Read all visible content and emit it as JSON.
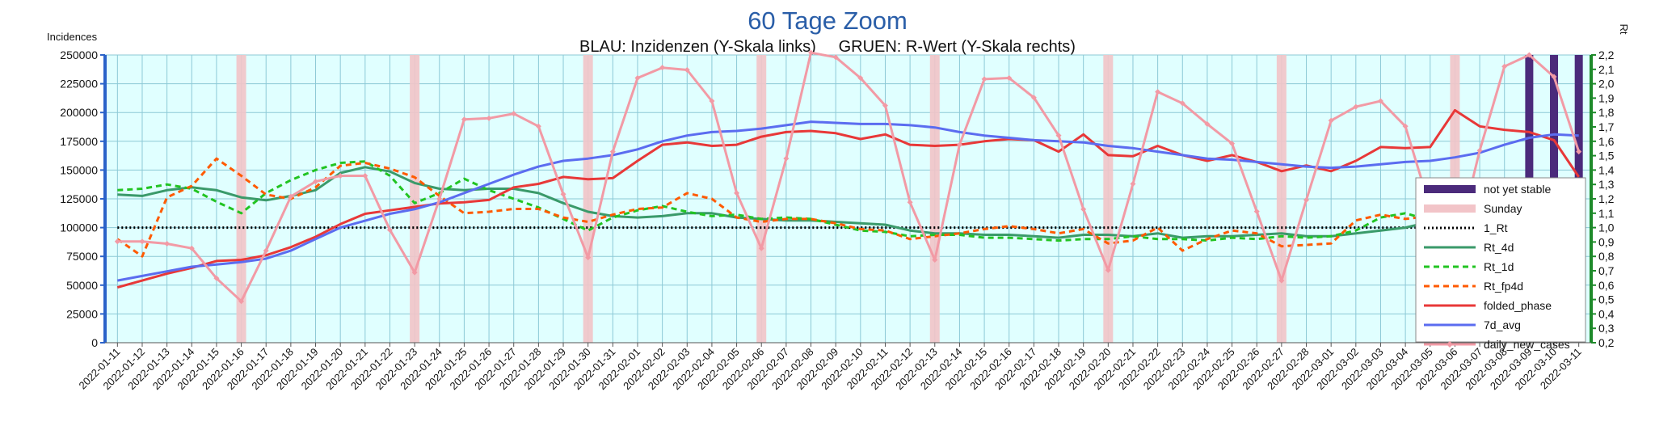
{
  "chart_data": {
    "type": "line",
    "title": "60 Tage Zoom",
    "subtitle": "BLAU: Inzidenzen (Y-Skala links)     GRUEN: R-Wert (Y-Skala rechts)",
    "ylabel": "Incidences",
    "y2label": "Rt",
    "ylim": [
      0,
      250000
    ],
    "y2lim": [
      0.2,
      2.2
    ],
    "yticks": [
      "0",
      "25000",
      "50000",
      "75000",
      "100000",
      "125000",
      "150000",
      "175000",
      "200000",
      "225000",
      "250000"
    ],
    "y2ticks": [
      "0,2",
      "0,3",
      "0,4",
      "0,5",
      "0,6",
      "0,7",
      "0,8",
      "0,9",
      "1,0",
      "1,1",
      "1,2",
      "1,3",
      "1,4",
      "1,5",
      "1,6",
      "1,7",
      "1,8",
      "1,9",
      "2,0",
      "2,1",
      "2,2"
    ],
    "grid": true,
    "background_color": "#e0ffff",
    "legend_position": "right",
    "categories": [
      "2022-01-11",
      "2022-01-12",
      "2022-01-13",
      "2022-01-14",
      "2022-01-15",
      "2022-01-16",
      "2022-01-17",
      "2022-01-18",
      "2022-01-19",
      "2022-01-20",
      "2022-01-21",
      "2022-01-22",
      "2022-01-23",
      "2022-01-24",
      "2022-01-25",
      "2022-01-26",
      "2022-01-27",
      "2022-01-28",
      "2022-01-29",
      "2022-01-30",
      "2022-01-31",
      "2022-02-01",
      "2022-02-02",
      "2022-02-03",
      "2022-02-04",
      "2022-02-05",
      "2022-02-06",
      "2022-02-07",
      "2022-02-08",
      "2022-02-09",
      "2022-02-10",
      "2022-02-11",
      "2022-02-12",
      "2022-02-13",
      "2022-02-14",
      "2022-02-15",
      "2022-02-16",
      "2022-02-17",
      "2022-02-18",
      "2022-02-19",
      "2022-02-20",
      "2022-02-21",
      "2022-02-22",
      "2022-02-23",
      "2022-02-24",
      "2022-02-25",
      "2022-02-26",
      "2022-02-27",
      "2022-02-28",
      "2022-03-01",
      "2022-03-02",
      "2022-03-03",
      "2022-03-04",
      "2022-03-05",
      "2022-03-06",
      "2022-03-07",
      "2022-03-08",
      "2022-03-09",
      "2022-03-10",
      "2022-03-11"
    ],
    "sunday_categories": [
      "2022-01-16",
      "2022-01-23",
      "2022-01-30",
      "2022-02-06",
      "2022-02-13",
      "2022-02-20",
      "2022-02-27",
      "2022-03-06"
    ],
    "not_yet_stable_categories": [
      "2022-03-09",
      "2022-03-10",
      "2022-03-11"
    ],
    "series": [
      {
        "name": "not yet stable",
        "kind": "bar",
        "color": "#4b2a7b"
      },
      {
        "name": "Sunday",
        "kind": "bar",
        "color": "#f2c4c8"
      },
      {
        "name": "1_Rt",
        "axis": "right",
        "color": "#000000",
        "dash": "dotted",
        "values": [
          1.0,
          1.0,
          1.0,
          1.0,
          1.0,
          1.0,
          1.0,
          1.0,
          1.0,
          1.0,
          1.0,
          1.0,
          1.0,
          1.0,
          1.0,
          1.0,
          1.0,
          1.0,
          1.0,
          1.0,
          1.0,
          1.0,
          1.0,
          1.0,
          1.0,
          1.0,
          1.0,
          1.0,
          1.0,
          1.0,
          1.0,
          1.0,
          1.0,
          1.0,
          1.0,
          1.0,
          1.0,
          1.0,
          1.0,
          1.0,
          1.0,
          1.0,
          1.0,
          1.0,
          1.0,
          1.0,
          1.0,
          1.0,
          1.0,
          1.0,
          1.0,
          1.0,
          1.0,
          1.0,
          1.0,
          1.0,
          1.0,
          1.0,
          1.0,
          1.0
        ]
      },
      {
        "name": "Rt_4d",
        "axis": "right",
        "color": "#3a9a6a",
        "dash": "solid",
        "values": [
          1.23,
          1.22,
          1.26,
          1.28,
          1.26,
          1.21,
          1.19,
          1.22,
          1.26,
          1.38,
          1.42,
          1.39,
          1.31,
          1.27,
          1.26,
          1.27,
          1.27,
          1.24,
          1.17,
          1.11,
          1.08,
          1.07,
          1.08,
          1.1,
          1.1,
          1.07,
          1.06,
          1.05,
          1.05,
          1.04,
          1.03,
          1.02,
          0.98,
          0.96,
          0.96,
          0.95,
          0.95,
          0.94,
          0.93,
          0.95,
          0.95,
          0.94,
          0.96,
          0.93,
          0.94,
          0.94,
          0.95,
          0.96,
          0.94,
          0.94,
          0.96,
          0.98,
          1.0,
          1.04,
          1.07,
          1.1,
          1.11,
          1.14,
          1.14,
          1.08
        ]
      },
      {
        "name": "Rt_1d",
        "axis": "right",
        "color": "#22c422",
        "dash": "dashed",
        "values": [
          1.26,
          1.27,
          1.3,
          1.27,
          1.18,
          1.1,
          1.24,
          1.33,
          1.4,
          1.45,
          1.46,
          1.36,
          1.17,
          1.24,
          1.34,
          1.26,
          1.2,
          1.14,
          1.06,
          0.98,
          1.07,
          1.12,
          1.15,
          1.11,
          1.08,
          1.09,
          1.06,
          1.07,
          1.06,
          1.02,
          0.98,
          0.97,
          0.94,
          0.95,
          0.95,
          0.93,
          0.93,
          0.92,
          0.91,
          0.92,
          0.92,
          0.94,
          0.92,
          0.92,
          0.91,
          0.93,
          0.92,
          0.94,
          0.93,
          0.94,
          0.98,
          1.07,
          1.1,
          1.05,
          1.03,
          1.12,
          1.16,
          1.13,
          1.13,
          0.93
        ]
      },
      {
        "name": "Rt_fp4d",
        "axis": "right",
        "color": "#ff5a00",
        "dash": "dashed",
        "values": [
          0.92,
          0.8,
          1.21,
          1.29,
          1.48,
          1.36,
          1.23,
          1.2,
          1.28,
          1.43,
          1.45,
          1.41,
          1.35,
          1.22,
          1.1,
          1.11,
          1.13,
          1.13,
          1.07,
          1.04,
          1.09,
          1.13,
          1.14,
          1.24,
          1.2,
          1.07,
          1.04,
          1.06,
          1.06,
          1.03,
          0.99,
          0.98,
          0.92,
          0.94,
          0.96,
          0.99,
          1.01,
          0.99,
          0.96,
          0.99,
          0.89,
          0.91,
          1.0,
          0.84,
          0.92,
          0.98,
          0.96,
          0.87,
          0.88,
          0.89,
          1.05,
          1.09,
          1.06,
          1.08,
          1.18,
          1.11,
          1.06,
          1.05,
          0.82,
          0.76
        ]
      },
      {
        "name": "folded_phase",
        "axis": "left",
        "color": "#e83838",
        "dash": "solid",
        "values": [
          48000,
          54000,
          60000,
          65000,
          71000,
          72000,
          76000,
          83000,
          92000,
          103000,
          112000,
          115000,
          118000,
          121000,
          122000,
          124000,
          135000,
          138000,
          144000,
          142000,
          143000,
          158000,
          172000,
          174000,
          171000,
          172000,
          179000,
          183000,
          184000,
          182000,
          177000,
          181000,
          172000,
          171000,
          172000,
          175000,
          177000,
          176000,
          166000,
          181000,
          163000,
          162000,
          171000,
          163000,
          158000,
          163000,
          157000,
          149000,
          154000,
          149000,
          158000,
          170000,
          169000,
          170000,
          202000,
          188000,
          185000,
          183000,
          176000,
          144000
        ]
      },
      {
        "name": "7d_avg",
        "axis": "left",
        "color": "#5b6cf0",
        "dash": "solid",
        "values": [
          54000,
          58000,
          62000,
          66000,
          68000,
          70000,
          73000,
          80000,
          90000,
          100000,
          106000,
          112000,
          116000,
          122000,
          130000,
          138000,
          146000,
          153000,
          158000,
          160000,
          163000,
          168000,
          175000,
          180000,
          183000,
          184000,
          186000,
          189000,
          192000,
          191000,
          190000,
          190000,
          189000,
          187000,
          183000,
          180000,
          178000,
          176000,
          175000,
          174000,
          171000,
          169000,
          166000,
          163000,
          160000,
          159000,
          157000,
          155000,
          153000,
          152000,
          153000,
          155000,
          157000,
          158000,
          161000,
          165000,
          172000,
          178000,
          181000,
          180000
        ]
      },
      {
        "name": "daily_new_cases",
        "axis": "left",
        "color": "#f29aa5",
        "dash": "solid",
        "marker": "diamond",
        "values": [
          88000,
          88000,
          86000,
          82000,
          56000,
          36000,
          80000,
          127000,
          140000,
          145000,
          145000,
          98000,
          61000,
          125000,
          194000,
          195000,
          199000,
          188000,
          129000,
          74000,
          166000,
          230000,
          239000,
          237000,
          210000,
          130000,
          82000,
          160000,
          252000,
          248000,
          230000,
          206000,
          122000,
          72000,
          172000,
          229000,
          230000,
          213000,
          180000,
          116000,
          63000,
          138000,
          218000,
          208000,
          190000,
          173000,
          114000,
          54000,
          124000,
          193000,
          205000,
          210000,
          188000,
          117000,
          79000,
          167000,
          240000,
          250000,
          231000,
          166000
        ]
      }
    ]
  }
}
